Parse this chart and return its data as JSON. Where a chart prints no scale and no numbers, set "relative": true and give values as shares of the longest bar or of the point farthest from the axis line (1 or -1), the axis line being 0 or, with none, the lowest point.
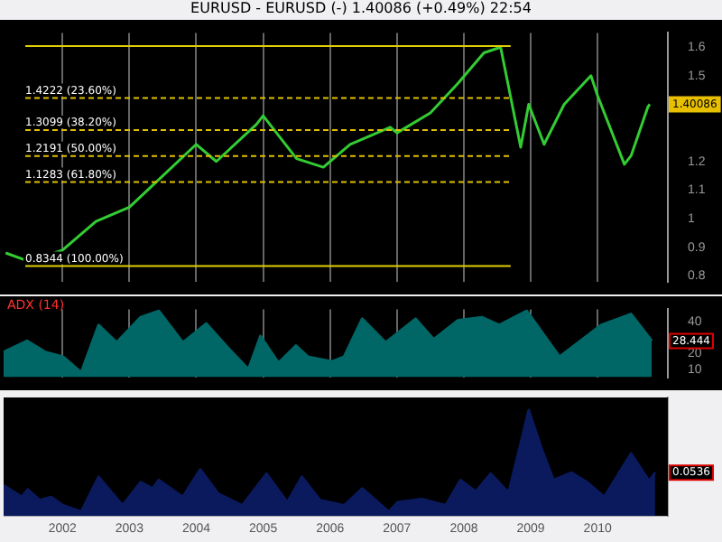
{
  "chart_data": [
    {
      "type": "line",
      "title": "EURUSD - EURUSD (-)   1.40086 (+0.49%)   22:54",
      "series": [
        {
          "color": "#33cc33",
          "x": [
            2001.15,
            2001.5,
            2002.0,
            2002.5,
            2003.0,
            2003.5,
            2004.0,
            2004.3,
            2004.9,
            2005.0,
            2005.5,
            2005.9,
            2006.3,
            2006.9,
            2007.0,
            2007.5,
            2007.9,
            2008.3,
            2008.55,
            2008.85,
            2008.97,
            2009.2,
            2009.5,
            2009.9,
            2010.0,
            2010.4,
            2010.5,
            2010.75,
            2010.78
          ],
          "values": [
            0.88,
            0.85,
            0.89,
            0.99,
            1.04,
            1.15,
            1.26,
            1.2,
            1.33,
            1.36,
            1.21,
            1.18,
            1.26,
            1.32,
            1.3,
            1.37,
            1.47,
            1.58,
            1.6,
            1.25,
            1.4,
            1.26,
            1.4,
            1.5,
            1.43,
            1.19,
            1.22,
            1.39,
            1.4
          ]
        }
      ],
      "xlim": [
        2001.12,
        2011.05
      ],
      "xticks": [
        2002,
        2003,
        2004,
        2005,
        2006,
        2007,
        2008,
        2009,
        2010
      ],
      "ylim": [
        0.78,
        1.65
      ],
      "yticks": [
        0.8,
        0.9,
        1,
        1.1,
        1.2,
        1.5,
        1.6
      ],
      "grid": "x",
      "tick_labels": "y",
      "legend": false,
      "ref_lines": [
        {
          "axis": "y",
          "value": 1.6038,
          "color": "#e0d000",
          "line_style": "solid"
        },
        {
          "axis": "y",
          "value": 1.4222,
          "label": "1.4222 (23.60%)",
          "color": "#e0c000",
          "line_style": "dashed"
        },
        {
          "axis": "y",
          "value": 1.3099,
          "label": "1.3099 (38.20%)",
          "color": "#e0c000",
          "line_style": "dashed"
        },
        {
          "axis": "y",
          "value": 1.2191,
          "label": "1.2191 (50.00%)",
          "color": "#e0c000",
          "line_style": "dashed"
        },
        {
          "axis": "y",
          "value": 1.1283,
          "label": "1.1283 (61.80%)",
          "color": "#e0c000",
          "line_style": "dashed"
        },
        {
          "axis": "y",
          "value": 0.8344,
          "label": "0.8344 (100.00%)",
          "color": "#e0d000",
          "line_style": "solid"
        }
      ],
      "annotations": [
        "1.40086"
      ]
    },
    {
      "type": "area",
      "title": "ADX (14)",
      "series": [
        {
          "color": "#006666",
          "x": [
            2001.12,
            2001.47,
            2001.74,
            2002.01,
            2002.28,
            2002.54,
            2002.81,
            2003.17,
            2003.44,
            2003.8,
            2004.15,
            2004.51,
            2004.78,
            2004.96,
            2005.23,
            2005.49,
            2005.67,
            2006.03,
            2006.21,
            2006.48,
            2006.83,
            2007.28,
            2007.55,
            2007.91,
            2008.27,
            2008.53,
            2008.94,
            2009.43,
            2010.05,
            2010.5,
            2010.81
          ],
          "values": [
            21,
            28,
            21,
            18,
            8,
            38,
            27,
            43,
            47,
            27,
            39,
            22,
            10,
            31,
            14,
            25,
            18,
            15,
            18,
            42,
            27,
            42,
            29,
            41,
            43,
            38,
            47,
            18,
            38,
            45,
            28
          ]
        }
      ],
      "xlim": [
        2001.12,
        2011.05
      ],
      "xticks": [
        2002,
        2003,
        2004,
        2005,
        2006,
        2007,
        2008,
        2009,
        2010
      ],
      "ylim": [
        5,
        48
      ],
      "yticks": [
        10,
        20,
        40
      ],
      "grid": "x",
      "tick_labels": "y",
      "legend": false,
      "annotations": [
        "28.444"
      ]
    },
    {
      "type": "area",
      "relative": true,
      "series": [
        {
          "color": "#0a1a5c",
          "x": [
            2001.12,
            2001.39,
            2001.48,
            2001.66,
            2001.83,
            2002.01,
            2002.28,
            2002.54,
            2002.9,
            2003.17,
            2003.35,
            2003.44,
            2003.8,
            2004.06,
            2004.33,
            2004.69,
            2005.05,
            2005.36,
            2005.58,
            2005.85,
            2006.21,
            2006.48,
            2006.88,
            2007.01,
            2007.37,
            2007.73,
            2007.95,
            2008.18,
            2008.4,
            2008.67,
            2008.97,
            2009.16,
            2009.34,
            2009.61,
            2009.84,
            2010.1,
            2010.5,
            2010.77,
            2010.86
          ],
          "values": [
            0.29,
            0.18,
            0.25,
            0.15,
            0.18,
            0.1,
            0.04,
            0.37,
            0.1,
            0.32,
            0.26,
            0.34,
            0.18,
            0.44,
            0.21,
            0.1,
            0.4,
            0.13,
            0.37,
            0.15,
            0.1,
            0.26,
            0.04,
            0.13,
            0.16,
            0.1,
            0.34,
            0.23,
            0.4,
            0.22,
            1,
            0.64,
            0.34,
            0.41,
            0.32,
            0.18,
            0.59,
            0.33,
            0.41
          ]
        }
      ],
      "xlim": [
        2001.12,
        2011.05
      ],
      "xticks": [
        2002,
        2003,
        2004,
        2005,
        2006,
        2007,
        2008,
        2009,
        2010
      ],
      "grid": "x",
      "tick_labels": "x",
      "legend": false,
      "annotations": [
        "0.0536"
      ]
    }
  ]
}
